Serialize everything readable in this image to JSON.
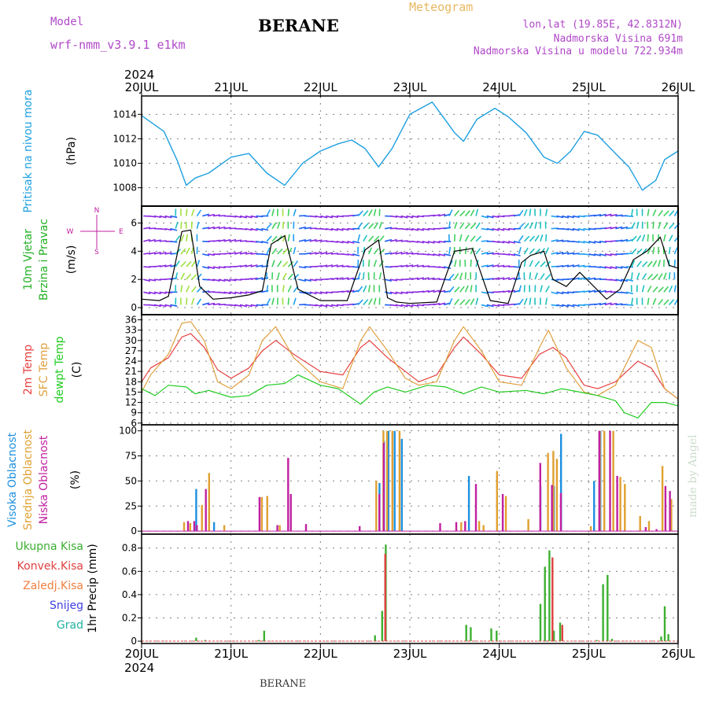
{
  "header": {
    "model_label": "Model",
    "model_name": "wrf-nmm_v3.9.1 e1km",
    "title": "BERANE",
    "meteogram": "Meteogram",
    "coords": "lon,lat (19.85E, 42.8312N)",
    "altitude": "Nadmorska Visina 691m",
    "altitude_model": "Nadmorska Visina u modelu 722.934m"
  },
  "footer": {
    "station": "BERANE",
    "credit": "made by Angel"
  },
  "x_axis": {
    "year": "2024",
    "ticks": [
      "20JUL",
      "21JUL",
      "22JUL",
      "23JUL",
      "24JUL",
      "25JUL",
      "26JUL"
    ]
  },
  "colors": {
    "pressure": "#1ea0e0",
    "speed": "#000000",
    "temp2m": "#e84040",
    "sfc": "#e0a040",
    "dewpt": "#22cc22",
    "high_cloud": "#1e90e0",
    "mid_cloud": "#e0a030",
    "low_cloud": "#c020a0",
    "total_precip": "#3cb030",
    "conv_precip": "#e04040",
    "grid": "#808080"
  },
  "chart_data": [
    {
      "type": "line",
      "title": "Pritisak na nivou mora",
      "ylabel": "(hPa)",
      "ylim": [
        1006.5,
        1015.5
      ],
      "yticks": [
        1008,
        1010,
        1012,
        1014
      ],
      "x_unit": "days since 20JUL 00 UTC",
      "series": [
        {
          "name": "Pritisak na nivou mora",
          "color": "#1ea0e0",
          "x": [
            0,
            0.25,
            0.4,
            0.5,
            0.6,
            0.75,
            1.0,
            1.2,
            1.4,
            1.6,
            1.8,
            2.0,
            2.2,
            2.35,
            2.5,
            2.65,
            2.8,
            3.0,
            3.15,
            3.25,
            3.4,
            3.5,
            3.6,
            3.75,
            3.95,
            4.1,
            4.3,
            4.5,
            4.65,
            4.8,
            4.95,
            5.1,
            5.3,
            5.45,
            5.6,
            5.75,
            5.85,
            6.0
          ],
          "y": [
            1013.9,
            1012.6,
            1010.2,
            1008.2,
            1008.8,
            1009.2,
            1010.5,
            1010.8,
            1009.2,
            1008.2,
            1010.0,
            1011.0,
            1011.6,
            1011.9,
            1011.2,
            1009.7,
            1011.2,
            1014.0,
            1014.6,
            1015.0,
            1013.5,
            1012.5,
            1011.8,
            1013.6,
            1014.5,
            1013.8,
            1012.5,
            1010.5,
            1010.0,
            1011.0,
            1012.6,
            1012.3,
            1010.8,
            1009.7,
            1007.8,
            1008.6,
            1010.3,
            1011.0
          ]
        }
      ]
    },
    {
      "type": "line",
      "title": "10m Vjetar Brzina i Pravac",
      "ylabel": "(m/s)",
      "ylim": [
        -0.5,
        7.2
      ],
      "yticks": [
        0,
        2,
        4,
        6
      ],
      "direction_legend": [
        "N",
        "W",
        "E",
        "S"
      ],
      "series": [
        {
          "name": "Brzina",
          "color": "#000000",
          "x": [
            0,
            0.2,
            0.3,
            0.45,
            0.55,
            0.65,
            0.8,
            1.0,
            1.2,
            1.35,
            1.45,
            1.6,
            1.75,
            2.0,
            2.3,
            2.5,
            2.65,
            2.75,
            2.85,
            3.0,
            3.3,
            3.5,
            3.7,
            3.9,
            4.1,
            4.25,
            4.35,
            4.5,
            4.6,
            4.75,
            4.9,
            5.2,
            5.35,
            5.5,
            5.65,
            5.8,
            5.9,
            6.0
          ],
          "y": [
            0.6,
            0.5,
            0.8,
            5.4,
            5.5,
            1.5,
            0.6,
            0.7,
            0.9,
            1.2,
            4.5,
            5.1,
            1.3,
            0.5,
            0.5,
            4.1,
            4.8,
            0.7,
            0.4,
            0.3,
            0.4,
            4.0,
            4.2,
            0.5,
            0.3,
            3.2,
            3.7,
            4.0,
            2.0,
            1.5,
            2.5,
            0.6,
            1.3,
            3.4,
            4.0,
            5.0,
            3.0,
            2.8
          ]
        }
      ]
    },
    {
      "type": "line",
      "title": "2m Temp / SFC Temp / dewpt Temp",
      "ylabel": "(C)",
      "ylim": [
        5.5,
        37.5
      ],
      "yticks": [
        6,
        9,
        12,
        15,
        18,
        21,
        24,
        27,
        30,
        33,
        36
      ],
      "series": [
        {
          "name": "2m Temp",
          "color": "#e84040",
          "x": [
            0,
            0.1,
            0.3,
            0.45,
            0.55,
            0.7,
            0.85,
            1.0,
            1.2,
            1.35,
            1.5,
            1.7,
            2.0,
            2.25,
            2.45,
            2.55,
            2.75,
            2.95,
            3.1,
            3.3,
            3.5,
            3.6,
            3.8,
            4.0,
            4.25,
            4.45,
            4.6,
            4.75,
            4.95,
            5.1,
            5.3,
            5.55,
            5.7,
            5.85,
            6.0
          ],
          "y": [
            18.0,
            22.0,
            25.0,
            31.0,
            32.0,
            28.0,
            21.5,
            19.0,
            22.0,
            27.0,
            30.0,
            26.0,
            21.0,
            20.0,
            28.0,
            30.0,
            25.0,
            21.0,
            18.0,
            20.0,
            28.0,
            31.0,
            26.0,
            20.0,
            19.0,
            26.0,
            28.0,
            25.0,
            17.0,
            16.0,
            18.0,
            24.0,
            22.0,
            16.0,
            13.0
          ]
        },
        {
          "name": "SFC Temp",
          "color": "#e0a040",
          "x": [
            0,
            0.1,
            0.3,
            0.45,
            0.55,
            0.7,
            0.85,
            1.0,
            1.2,
            1.35,
            1.5,
            1.7,
            2.0,
            2.25,
            2.45,
            2.55,
            2.75,
            2.95,
            3.1,
            3.3,
            3.5,
            3.6,
            3.8,
            4.0,
            4.25,
            4.45,
            4.55,
            4.75,
            4.95,
            5.1,
            5.3,
            5.55,
            5.7,
            5.85,
            6.0
          ],
          "y": [
            15.0,
            20.0,
            26.0,
            35.0,
            35.5,
            30.0,
            18.0,
            16.0,
            20.0,
            30.0,
            34.0,
            25.0,
            18.0,
            16.0,
            30.0,
            34.0,
            27.0,
            19.0,
            17.0,
            18.0,
            30.0,
            34.0,
            27.0,
            18.0,
            17.0,
            28.0,
            33.0,
            22.0,
            15.0,
            14.0,
            17.0,
            30.0,
            28.0,
            16.0,
            13.0
          ]
        },
        {
          "name": "dewpt Temp",
          "color": "#22cc22",
          "x": [
            0,
            0.15,
            0.3,
            0.5,
            0.6,
            0.75,
            1.0,
            1.2,
            1.4,
            1.6,
            1.75,
            2.0,
            2.2,
            2.45,
            2.6,
            2.75,
            2.95,
            3.2,
            3.4,
            3.6,
            3.8,
            4.0,
            4.3,
            4.5,
            4.7,
            4.9,
            5.1,
            5.3,
            5.4,
            5.55,
            5.7,
            5.85,
            6.0
          ],
          "y": [
            16.0,
            14.0,
            17.0,
            16.5,
            14.5,
            15.5,
            13.5,
            14.0,
            17.0,
            17.5,
            20.0,
            17.0,
            16.0,
            11.5,
            15.0,
            16.5,
            15.0,
            17.0,
            16.5,
            14.5,
            16.5,
            15.0,
            15.5,
            14.5,
            16.0,
            15.0,
            14.0,
            12.5,
            9.0,
            7.5,
            12.0,
            12.0,
            11.0
          ]
        }
      ]
    },
    {
      "type": "bar",
      "title": "Visoka Oblacnost / Srednja Oblacnost / Niska Oblacnost",
      "ylabel": "(%)",
      "ylim": [
        -3,
        106
      ],
      "yticks": [
        0,
        25,
        50,
        75,
        100
      ],
      "series": [
        {
          "name": "Visoka Oblacnost",
          "color": "#1e90e0",
          "x": [
            0.6,
            0.8,
            2.65,
            2.7,
            2.75,
            2.82,
            2.9,
            3.65,
            4.45,
            4.6,
            4.68,
            5.05,
            5.12
          ],
          "values": [
            42,
            9,
            48,
            90,
            100,
            100,
            92,
            55,
            45,
            45,
            97,
            50,
            100
          ]
        },
        {
          "name": "Srednja Oblacnost",
          "color": "#e0a030",
          "x": [
            0.45,
            0.52,
            0.65,
            0.73,
            0.9,
            1.32,
            1.38,
            1.52,
            2.6,
            2.68,
            2.72,
            2.78,
            2.86,
            3.55,
            3.75,
            3.8,
            3.95,
            4.05,
            4.3,
            4.52,
            4.58,
            4.62,
            5.0,
            5.1,
            5.15,
            5.25,
            5.33,
            5.38,
            5.55,
            5.65,
            5.8,
            5.9
          ],
          "values": [
            9,
            8,
            26,
            58,
            6,
            34,
            35,
            6,
            50,
            100,
            100,
            100,
            100,
            9,
            10,
            6,
            60,
            35,
            12,
            78,
            80,
            72,
            5,
            100,
            100,
            100,
            54,
            47,
            15,
            10,
            65,
            32
          ]
        },
        {
          "name": "Niska Oblacnost",
          "color": "#c020a0",
          "x": [
            0.48,
            0.55,
            0.58,
            0.68,
            1.28,
            1.48,
            1.6,
            1.63,
            1.8,
            2.4,
            2.62,
            2.67,
            3.3,
            3.48,
            3.58,
            3.7,
            4.0,
            4.42,
            4.55,
            4.65,
            5.08,
            5.2,
            5.28,
            5.6,
            5.72,
            5.82,
            5.87
          ],
          "values": [
            10,
            10,
            6,
            42,
            34,
            6,
            73,
            37,
            7,
            5,
            37,
            88,
            8,
            9,
            10,
            47,
            37,
            68,
            46,
            38,
            100,
            100,
            55,
            4,
            2,
            45,
            40
          ]
        }
      ]
    },
    {
      "type": "bar",
      "title": "1hr Precip",
      "ylabel": "1hr Precip (mm)",
      "ylim": [
        -0.02,
        0.92
      ],
      "yticks": [
        0,
        0.2,
        0.4,
        0.6,
        0.8
      ],
      "legend": [
        "Ukupna Kisa",
        "Konvek.Kisa",
        "Zaledj.Kisa",
        "Snijeg",
        "Grad"
      ],
      "legend_colors": [
        "#3cb030",
        "#e04040",
        "#f08040",
        "#4040e0",
        "#20b0a0"
      ],
      "series": [
        {
          "name": "Ukupna Kisa",
          "color": "#3cb030",
          "x": [
            0.6,
            0.7,
            1.3,
            1.36,
            2.6,
            2.68,
            2.72,
            3.62,
            3.67,
            3.9,
            3.96,
            4.45,
            4.5,
            4.55,
            4.6,
            4.67,
            5.08,
            5.15,
            5.2,
            5.25,
            5.8,
            5.84,
            5.88
          ],
          "values": [
            0.03,
            0.01,
            0.01,
            0.09,
            0.05,
            0.26,
            0.83,
            0.14,
            0.12,
            0.11,
            0.09,
            0.32,
            0.64,
            0.78,
            0.09,
            0.16,
            0.01,
            0.49,
            0.57,
            0.02,
            0.04,
            0.3,
            0.06
          ]
        },
        {
          "name": "Konvek.Kisa",
          "color": "#e04040",
          "x": [
            2.7,
            4.57,
            4.68
          ],
          "values": [
            0.75,
            0.72,
            0.14
          ]
        }
      ]
    }
  ]
}
